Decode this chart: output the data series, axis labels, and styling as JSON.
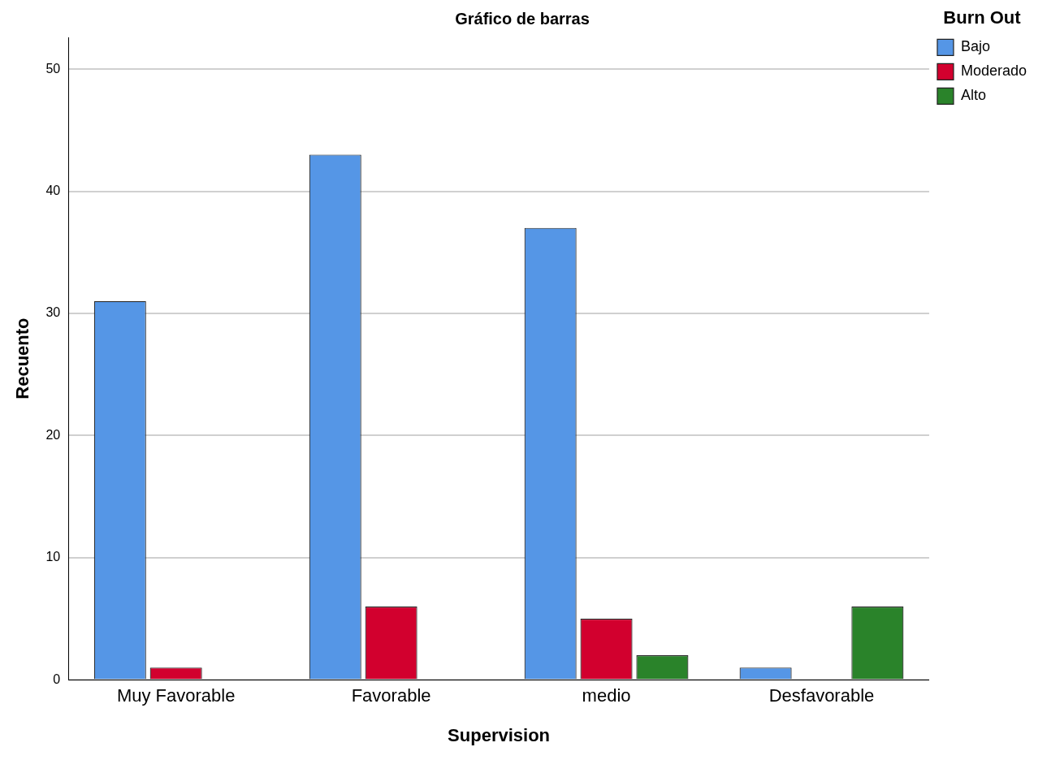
{
  "chart_data": {
    "type": "bar",
    "title": "Gráfico de barras",
    "xlabel": "Supervision",
    "ylabel": "Recuento",
    "legend_title": "Burn Out",
    "categories": [
      "Muy Favorable",
      "Favorable",
      "medio",
      "Desfavorable"
    ],
    "series": [
      {
        "name": "Bajo",
        "color": "#5596e6",
        "values": [
          31,
          43,
          37,
          1
        ]
      },
      {
        "name": "Moderado",
        "color": "#d2002e",
        "values": [
          1,
          6,
          5,
          null
        ]
      },
      {
        "name": "Alto",
        "color": "#2a832a",
        "values": [
          null,
          null,
          2,
          6
        ]
      }
    ],
    "ylim": [
      0,
      52.6
    ],
    "yticks": [
      0,
      10,
      20,
      30,
      40,
      50
    ],
    "grid": "y",
    "legend": "top right"
  }
}
